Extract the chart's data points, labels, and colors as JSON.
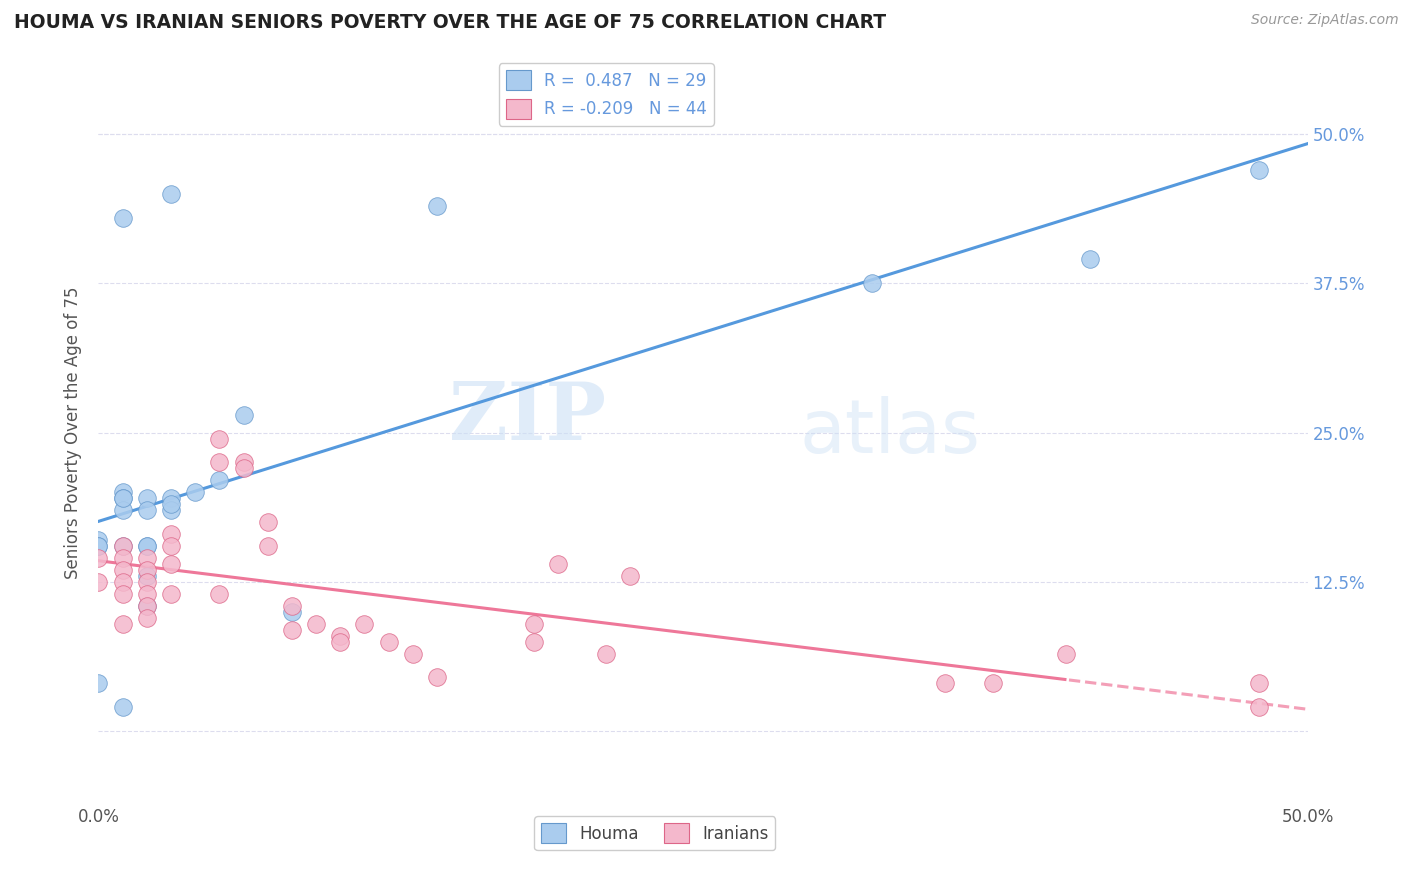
{
  "title": "HOUMA VS IRANIAN SENIORS POVERTY OVER THE AGE OF 75 CORRELATION CHART",
  "source_text": "Source: ZipAtlas.com",
  "ylabel": "Seniors Poverty Over the Age of 75",
  "watermark_part1": "ZIP",
  "watermark_part2": "atlas",
  "houma_color": "#aaccee",
  "iranian_color": "#f4b8cc",
  "houma_line_color": "#5599dd",
  "iranian_line_color": "#ee7799",
  "houma_edge_color": "#6699cc",
  "iranian_edge_color": "#dd6688",
  "background_color": "#ffffff",
  "grid_color": "#ddddee",
  "title_color": "#222222",
  "axis_label_color": "#555555",
  "right_axis_color": "#6699dd",
  "houma_points_x": [
    0.01,
    0.03,
    0.14,
    0.01,
    0.01,
    0.01,
    0.02,
    0.02,
    0.03,
    0.03,
    0.04,
    0.05,
    0.02,
    0.02,
    0.02,
    0.03,
    0.0,
    0.0,
    0.0,
    0.01,
    0.41,
    0.48,
    0.32,
    0.08,
    0.01,
    0.02,
    0.0,
    0.06,
    0.01
  ],
  "houma_points_y": [
    0.43,
    0.45,
    0.44,
    0.2,
    0.195,
    0.185,
    0.195,
    0.185,
    0.195,
    0.185,
    0.2,
    0.21,
    0.155,
    0.13,
    0.105,
    0.19,
    0.16,
    0.155,
    0.04,
    0.02,
    0.395,
    0.47,
    0.375,
    0.1,
    0.155,
    0.155,
    0.155,
    0.265,
    0.195
  ],
  "iranian_points_x": [
    0.0,
    0.0,
    0.01,
    0.01,
    0.01,
    0.01,
    0.01,
    0.01,
    0.02,
    0.02,
    0.02,
    0.02,
    0.02,
    0.02,
    0.03,
    0.03,
    0.03,
    0.03,
    0.05,
    0.05,
    0.05,
    0.06,
    0.06,
    0.07,
    0.07,
    0.08,
    0.08,
    0.09,
    0.1,
    0.1,
    0.11,
    0.12,
    0.13,
    0.14,
    0.18,
    0.18,
    0.19,
    0.21,
    0.22,
    0.35,
    0.37,
    0.4,
    0.48,
    0.48
  ],
  "iranian_points_y": [
    0.145,
    0.125,
    0.155,
    0.145,
    0.135,
    0.125,
    0.115,
    0.09,
    0.145,
    0.135,
    0.125,
    0.115,
    0.105,
    0.095,
    0.165,
    0.155,
    0.14,
    0.115,
    0.245,
    0.225,
    0.115,
    0.225,
    0.22,
    0.175,
    0.155,
    0.105,
    0.085,
    0.09,
    0.08,
    0.075,
    0.09,
    0.075,
    0.065,
    0.045,
    0.09,
    0.075,
    0.14,
    0.065,
    0.13,
    0.04,
    0.04,
    0.065,
    0.04,
    0.02
  ],
  "xlim": [
    0.0,
    0.5
  ],
  "ylim": [
    -0.06,
    0.56
  ],
  "right_yticks": [
    0.0,
    0.125,
    0.25,
    0.375,
    0.5
  ],
  "right_ytick_labels": [
    "",
    "12.5%",
    "25.0%",
    "37.5%",
    "50.0%"
  ]
}
